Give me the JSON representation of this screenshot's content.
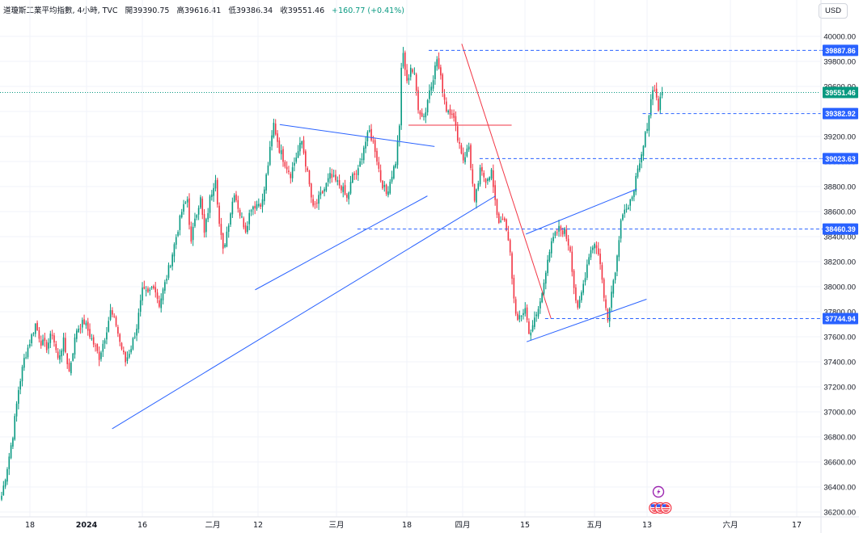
{
  "header": {
    "symbol": "道瓊斯工業平均指數, 4小時, TVC",
    "open_label": "開",
    "open": "39390.75",
    "high_label": "高",
    "high": "39616.41",
    "low_label": "低",
    "low": "39386.34",
    "close_label": "收",
    "close": "39551.46",
    "change": "+160.77 (+0.41%)"
  },
  "currency": "USD",
  "colors": {
    "up": "#089981",
    "down": "#f23645",
    "trendline": "#2962ff",
    "resistance": "#f23645",
    "level": "#2962ff",
    "price": "#089981",
    "axis_text": "#131722"
  },
  "chart_data": {
    "type": "candlestick",
    "ylim": [
      36200,
      40000
    ],
    "y_ticks": [
      "40000.00",
      "39800.00",
      "39600.00",
      "39400.00",
      "39200.00",
      "39000.00",
      "38800.00",
      "38600.00",
      "38400.00",
      "38200.00",
      "38000.00",
      "37800.00",
      "37600.00",
      "37400.00",
      "37200.00",
      "37000.00",
      "36800.00",
      "36600.00",
      "36400.00",
      "36200.00"
    ],
    "x_ticks": [
      "18",
      "2024",
      "16",
      "二月",
      "12",
      "三月",
      "18",
      "四月",
      "15",
      "五月",
      "13",
      "六月",
      "17"
    ],
    "price_labels": [
      {
        "value": 39887.86,
        "text": "39887.86",
        "kind": "level"
      },
      {
        "value": 39551.46,
        "text": "39551.46",
        "kind": "price"
      },
      {
        "value": 39382.92,
        "text": "39382.92",
        "kind": "level"
      },
      {
        "value": 39023.63,
        "text": "39023.63",
        "kind": "level"
      },
      {
        "value": 38460.39,
        "text": "38460.39",
        "kind": "level"
      },
      {
        "value": 37744.94,
        "text": "37744.94",
        "kind": "level"
      }
    ],
    "anchors": [
      [
        0,
        36330
      ],
      [
        3,
        36560
      ],
      [
        6,
        36820
      ],
      [
        9,
        37180
      ],
      [
        12,
        37420
      ],
      [
        15,
        37560
      ],
      [
        18,
        37700
      ],
      [
        21,
        37560
      ],
      [
        24,
        37520
      ],
      [
        27,
        37630
      ],
      [
        30,
        37420
      ],
      [
        33,
        37560
      ],
      [
        36,
        37320
      ],
      [
        40,
        37660
      ],
      [
        44,
        37720
      ],
      [
        48,
        37580
      ],
      [
        52,
        37440
      ],
      [
        55,
        37600
      ],
      [
        58,
        37800
      ],
      [
        61,
        37700
      ],
      [
        63,
        37560
      ],
      [
        66,
        37400
      ],
      [
        69,
        37520
      ],
      [
        72,
        37680
      ],
      [
        75,
        37960
      ],
      [
        78,
        37940
      ],
      [
        81,
        38020
      ],
      [
        84,
        37860
      ],
      [
        87,
        38020
      ],
      [
        90,
        38200
      ],
      [
        93,
        38400
      ],
      [
        96,
        38600
      ],
      [
        99,
        38700
      ],
      [
        101,
        38340
      ],
      [
        103,
        38560
      ],
      [
        106,
        38700
      ],
      [
        108,
        38420
      ],
      [
        111,
        38700
      ],
      [
        114,
        38880
      ],
      [
        116,
        38500
      ],
      [
        118,
        38280
      ],
      [
        121,
        38520
      ],
      [
        124,
        38760
      ],
      [
        127,
        38580
      ],
      [
        130,
        38460
      ],
      [
        133,
        38640
      ],
      [
        136,
        38660
      ],
      [
        139,
        38680
      ],
      [
        142,
        38980
      ],
      [
        145,
        39300
      ],
      [
        148,
        39100
      ],
      [
        151,
        38990
      ],
      [
        154,
        38900
      ],
      [
        157,
        39040
      ],
      [
        160,
        39160
      ],
      [
        163,
        38900
      ],
      [
        166,
        38620
      ],
      [
        169,
        38700
      ],
      [
        172,
        38780
      ],
      [
        175,
        38880
      ],
      [
        178,
        38840
      ],
      [
        181,
        38800
      ],
      [
        184,
        38700
      ],
      [
        187,
        38880
      ],
      [
        190,
        38920
      ],
      [
        193,
        39120
      ],
      [
        196,
        39240
      ],
      [
        199,
        39100
      ],
      [
        202,
        38860
      ],
      [
        205,
        38740
      ],
      [
        208,
        38900
      ],
      [
        210,
        39000
      ],
      [
        212,
        39300
      ],
      [
        213,
        39720
      ],
      [
        214,
        39860
      ],
      [
        216,
        39620
      ],
      [
        218,
        39760
      ],
      [
        220,
        39680
      ],
      [
        222,
        39440
      ],
      [
        224,
        39360
      ],
      [
        226,
        39400
      ],
      [
        228,
        39580
      ],
      [
        230,
        39680
      ],
      [
        232,
        39820
      ],
      [
        234,
        39660
      ],
      [
        237,
        39420
      ],
      [
        240,
        39400
      ],
      [
        243,
        39200
      ],
      [
        246,
        39020
      ],
      [
        249,
        39120
      ],
      [
        252,
        38660
      ],
      [
        255,
        38920
      ],
      [
        258,
        38860
      ],
      [
        261,
        38920
      ],
      [
        263,
        38660
      ],
      [
        265,
        38520
      ],
      [
        267,
        38560
      ],
      [
        269,
        38440
      ],
      [
        271,
        38260
      ],
      [
        273,
        37900
      ],
      [
        275,
        37720
      ],
      [
        277,
        37760
      ],
      [
        279,
        37840
      ],
      [
        281,
        37620
      ],
      [
        283,
        37700
      ],
      [
        285,
        37760
      ],
      [
        288,
        37940
      ],
      [
        291,
        38240
      ],
      [
        294,
        38380
      ],
      [
        297,
        38460
      ],
      [
        300,
        38440
      ],
      [
        303,
        38300
      ],
      [
        305,
        38000
      ],
      [
        307,
        37800
      ],
      [
        310,
        38020
      ],
      [
        313,
        38260
      ],
      [
        316,
        38360
      ],
      [
        319,
        38200
      ],
      [
        321,
        37900
      ],
      [
        323,
        37760
      ],
      [
        325,
        37960
      ],
      [
        328,
        38240
      ],
      [
        330,
        38560
      ],
      [
        332,
        38620
      ],
      [
        334,
        38600
      ],
      [
        336,
        38740
      ],
      [
        338,
        38860
      ],
      [
        340,
        38960
      ],
      [
        342,
        39120
      ],
      [
        345,
        39380
      ],
      [
        347,
        39600
      ],
      [
        349,
        39520
      ],
      [
        350,
        39420
      ],
      [
        352,
        39551.46
      ]
    ],
    "candle_spacing_px": 2.32,
    "drawings": [
      {
        "type": "trendline",
        "color": "#2962ff",
        "from": [
          58.9,
          36865
        ],
        "to": [
          263.2,
          38725
        ]
      },
      {
        "type": "trendline",
        "color": "#2962ff",
        "from": [
          135.1,
          37975
        ],
        "to": [
          226.9,
          38725
        ]
      },
      {
        "type": "trendline",
        "color": "#2962ff",
        "from": [
          148.2,
          39295
        ],
        "to": [
          230.7,
          39120
        ]
      },
      {
        "type": "trendline",
        "color": "#2962ff",
        "from": [
          279.8,
          37560
        ],
        "to": [
          343.7,
          37900
        ]
      },
      {
        "type": "trendline",
        "color": "#2962ff",
        "from": [
          279.4,
          38420
        ],
        "to": [
          338.5,
          38780
        ]
      },
      {
        "type": "trendline",
        "color": "#f23645",
        "from": [
          245.2,
          39940
        ],
        "to": [
          292.8,
          37745
        ]
      },
      {
        "type": "horizontal",
        "color": "#f23645",
        "from": [
          216.8,
          39290
        ],
        "to": [
          271.8,
          39290
        ]
      },
      {
        "type": "horizontal",
        "color": "#2962ff",
        "from": [
          189.6,
          38460.39
        ],
        "to": [
          438.7,
          38460.39
        ]
      },
      {
        "type": "horizontal",
        "color": "#2962ff",
        "from": [
          227.6,
          39887.86
        ],
        "to": [
          438.7,
          39887.86
        ]
      },
      {
        "type": "horizontal",
        "color": "#2962ff",
        "from": [
          341.6,
          39382.92
        ],
        "to": [
          438.7,
          39382.92
        ]
      },
      {
        "type": "horizontal",
        "color": "#2962ff",
        "from": [
          289.6,
          37744.94
        ],
        "to": [
          438.7,
          37744.94
        ]
      },
      {
        "type": "horizontal",
        "color": "#2962ff",
        "from": [
          254.7,
          39023.63
        ],
        "to": [
          438.7,
          39023.63
        ]
      }
    ],
    "event_icons": [
      {
        "name": "lightning-event-icon",
        "index": 350,
        "row": 0
      },
      {
        "name": "us-flag-event-icon",
        "index": 348,
        "row": 1
      },
      {
        "name": "us-flag-event-icon",
        "index": 351,
        "row": 1
      },
      {
        "name": "us-flag-event-icon",
        "index": 354,
        "row": 1
      }
    ],
    "grid": true,
    "legend": "none"
  }
}
